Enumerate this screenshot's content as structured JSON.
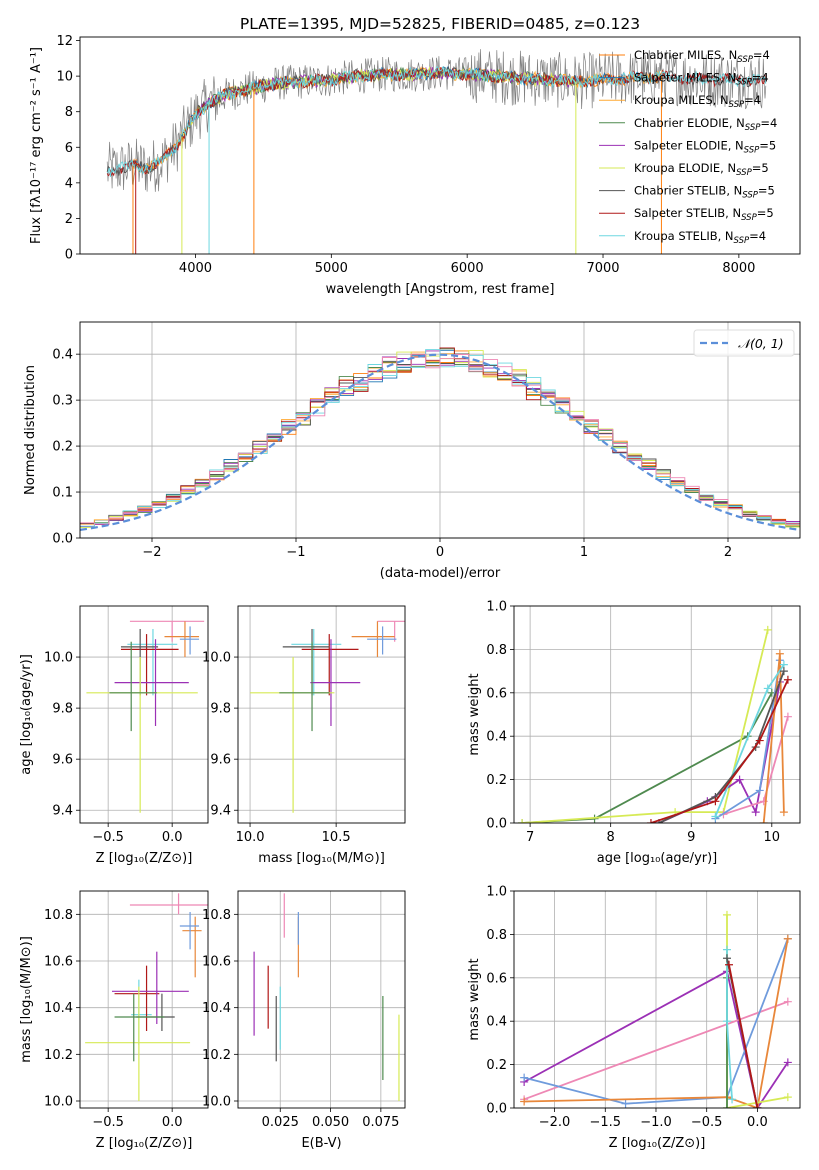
{
  "colors": {
    "chabrier_miles": "#ff7f0e",
    "salpeter_miles": "#1f77b4",
    "kroupa_miles": "#ffaa33",
    "chabrier_elodie": "#4f8a4f",
    "salpeter_elodie": "#9b30b5",
    "kroupa_elodie": "#d6ea55",
    "chabrier_stelib": "#555555",
    "salpeter_stelib": "#b01818",
    "kroupa_stelib": "#6ed7e0",
    "data": "#808080",
    "normal": "#5b8fd9",
    "pink": "#ee88b5",
    "blue": "#6f9bdc",
    "orange": "#e8873a"
  },
  "chart_data": [
    {
      "id": "spectrum",
      "type": "line",
      "title": "PLATE=1395, MJD=52825, FIBERID=0485, z=0.123",
      "xlabel": "wavelength [Angstrom, rest frame]",
      "ylabel": "Flux [fλ10⁻¹⁷ erg cm⁻² s⁻¹ A⁻¹]",
      "xlim": [
        3150,
        8450
      ],
      "ylim": [
        0,
        12.2
      ],
      "xticks": [
        4000,
        5000,
        6000,
        7000,
        8000
      ],
      "yticks": [
        0,
        2,
        4,
        6,
        8,
        10,
        12
      ],
      "legend_position": "right",
      "legend": [
        {
          "label": "Chabrier MILES, N",
          "sub": "SSP",
          "tail": "=4",
          "color_key": "chabrier_miles"
        },
        {
          "label": "Salpeter MILES, N",
          "sub": "SSP",
          "tail": "=4",
          "color_key": "salpeter_miles"
        },
        {
          "label": "Kroupa MILES, N",
          "sub": "SSP",
          "tail": "=4",
          "color_key": "kroupa_miles"
        },
        {
          "label": "Chabrier ELODIE, N",
          "sub": "SSP",
          "tail": "=4",
          "color_key": "chabrier_elodie"
        },
        {
          "label": "Salpeter ELODIE, N",
          "sub": "SSP",
          "tail": "=5",
          "color_key": "salpeter_elodie"
        },
        {
          "label": "Kroupa ELODIE, N",
          "sub": "SSP",
          "tail": "=5",
          "color_key": "kroupa_elodie"
        },
        {
          "label": "Chabrier STELIB, N",
          "sub": "SSP",
          "tail": "=5",
          "color_key": "chabrier_stelib"
        },
        {
          "label": "Salpeter STELIB, N",
          "sub": "SSP",
          "tail": "=5",
          "color_key": "salpeter_stelib"
        },
        {
          "label": "Kroupa STELIB, N",
          "sub": "SSP",
          "tail": "=4",
          "color_key": "kroupa_stelib"
        }
      ],
      "continuum": [
        [
          3350,
          4.7
        ],
        [
          3450,
          4.8
        ],
        [
          3550,
          5.0
        ],
        [
          3650,
          4.8
        ],
        [
          3750,
          5.2
        ],
        [
          3850,
          6.0
        ],
        [
          3950,
          7.2
        ],
        [
          4000,
          7.8
        ],
        [
          4100,
          8.5
        ],
        [
          4200,
          8.9
        ],
        [
          4400,
          9.3
        ],
        [
          4600,
          9.6
        ],
        [
          4800,
          9.7
        ],
        [
          5000,
          9.8
        ],
        [
          5200,
          10.0
        ],
        [
          5400,
          10.1
        ],
        [
          5600,
          10.1
        ],
        [
          5800,
          10.2
        ],
        [
          6000,
          10.1
        ],
        [
          6200,
          10.0
        ],
        [
          6400,
          9.9
        ],
        [
          6600,
          9.8
        ],
        [
          6800,
          9.7
        ],
        [
          7000,
          9.8
        ],
        [
          7200,
          9.9
        ],
        [
          7400,
          10.0
        ],
        [
          7600,
          9.9
        ],
        [
          7800,
          9.8
        ],
        [
          8000,
          9.8
        ],
        [
          8200,
          9.7
        ]
      ],
      "line_wavelengths": [
        3727,
        4340,
        4861,
        5007,
        6563,
        6717
      ]
    },
    {
      "id": "residuals",
      "type": "bar",
      "xlabel": "(data-model)/error",
      "ylabel": "Normed distribution",
      "xlim": [
        -2.5,
        2.5
      ],
      "ylim": [
        0,
        0.47
      ],
      "xticks": [
        -2,
        -1,
        0,
        1,
        2
      ],
      "yticks": [
        0.0,
        0.1,
        0.2,
        0.3,
        0.4
      ],
      "legend_position": "top-right",
      "legend": [
        {
          "label": "𝒩(0, 1)",
          "color_key": "normal"
        }
      ],
      "bin_width": 0.1,
      "grid": true
    },
    {
      "id": "age_vs_Z",
      "type": "scatter",
      "xlabel": "Z [log₁₀(Z/Z⊙)]",
      "ylabel": "age  [log₁₀(age/yr)]",
      "xlim": [
        -0.72,
        0.28
      ],
      "ylim": [
        9.35,
        10.2
      ],
      "xticks": [
        -0.5,
        0.0
      ],
      "yticks": [
        9.4,
        9.6,
        9.8,
        10.0
      ],
      "grid": true,
      "points": [
        {
          "x": 0.0,
          "xerr": [
            0.33,
            0.25
          ],
          "y": 10.14,
          "yerr": [
            0.08,
            0.0
          ],
          "color_key": "pink"
        },
        {
          "x": 0.1,
          "xerr": [
            0.16,
            0.11
          ],
          "y": 10.08,
          "yerr": [
            0.08,
            0.06
          ],
          "color_key": "orange"
        },
        {
          "x": 0.14,
          "xerr": [
            0.08,
            0.07
          ],
          "y": 10.07,
          "yerr": [
            0.06,
            0.05
          ],
          "color_key": "blue"
        },
        {
          "x": -0.15,
          "xerr": [
            0.2,
            0.19
          ],
          "y": 10.05,
          "yerr": [
            0.2,
            0.06
          ],
          "color_key": "kroupa_stelib"
        },
        {
          "x": -0.2,
          "xerr": [
            0.2,
            0.25
          ],
          "y": 10.03,
          "yerr": [
            0.18,
            0.06
          ],
          "color_key": "salpeter_stelib"
        },
        {
          "x": -0.25,
          "xerr": [
            0.15,
            0.14
          ],
          "y": 10.04,
          "yerr": [
            0.19,
            0.07
          ],
          "color_key": "chabrier_stelib"
        },
        {
          "x": -0.13,
          "xerr": [
            0.32,
            0.26
          ],
          "y": 9.9,
          "yerr": [
            0.17,
            0.17
          ],
          "color_key": "salpeter_elodie"
        },
        {
          "x": -0.25,
          "xerr": [
            0.42,
            0.45
          ],
          "y": 9.86,
          "yerr": [
            0.47,
            0.14
          ],
          "color_key": "kroupa_elodie"
        },
        {
          "x": -0.32,
          "xerr": [
            0.17,
            0.2
          ],
          "y": 9.86,
          "yerr": [
            0.15,
            0.2
          ],
          "color_key": "chabrier_elodie"
        }
      ]
    },
    {
      "id": "age_vs_mass",
      "type": "scatter",
      "xlabel": "mass [log₁₀(M/M⊙)]",
      "ylabel": "",
      "xlim": [
        9.93,
        10.9
      ],
      "ylim": [
        9.35,
        10.2
      ],
      "xticks": [
        10.0,
        10.5
      ],
      "yticks": [
        9.4,
        9.6,
        9.8,
        10.0
      ],
      "grid": true,
      "points": [
        {
          "x": 10.84,
          "xerr": [
            0.1,
            0.06
          ],
          "y": 10.14,
          "yerr": [
            0.08,
            0.0
          ],
          "color_key": "pink"
        },
        {
          "x": 10.74,
          "xerr": [
            0.15,
            0.1
          ],
          "y": 10.08,
          "yerr": [
            0.08,
            0.06
          ],
          "color_key": "orange"
        },
        {
          "x": 10.77,
          "xerr": [
            0.09,
            0.08
          ],
          "y": 10.07,
          "yerr": [
            0.06,
            0.05
          ],
          "color_key": "blue"
        },
        {
          "x": 10.37,
          "xerr": [
            0.13,
            0.16
          ],
          "y": 10.05,
          "yerr": [
            0.2,
            0.06
          ],
          "color_key": "kroupa_stelib"
        },
        {
          "x": 10.46,
          "xerr": [
            0.16,
            0.17
          ],
          "y": 10.03,
          "yerr": [
            0.18,
            0.06
          ],
          "color_key": "salpeter_stelib"
        },
        {
          "x": 10.36,
          "xerr": [
            0.17,
            0.1
          ],
          "y": 10.04,
          "yerr": [
            0.19,
            0.07
          ],
          "color_key": "chabrier_stelib"
        },
        {
          "x": 10.47,
          "xerr": [
            0.12,
            0.17
          ],
          "y": 9.9,
          "yerr": [
            0.17,
            0.17
          ],
          "color_key": "salpeter_elodie"
        },
        {
          "x": 10.25,
          "xerr": [
            0.25,
            0.24
          ],
          "y": 9.86,
          "yerr": [
            0.47,
            0.14
          ],
          "color_key": "kroupa_elodie"
        },
        {
          "x": 10.36,
          "xerr": [
            0.19,
            0.1
          ],
          "y": 9.86,
          "yerr": [
            0.15,
            0.2
          ],
          "color_key": "chabrier_elodie"
        }
      ]
    },
    {
      "id": "weight_vs_age",
      "type": "line",
      "xlabel": "age  [log₁₀(age/yr)]",
      "ylabel": "mass weight",
      "xlim": [
        6.8,
        10.35
      ],
      "ylim": [
        0,
        1.0
      ],
      "xticks": [
        7,
        8,
        9,
        10
      ],
      "yticks": [
        0.0,
        0.2,
        0.4,
        0.6,
        0.8,
        1.0
      ],
      "grid": true,
      "series": [
        {
          "color_key": "chabrier_elodie",
          "x": [
            6.9,
            7.8,
            9.7,
            10.0
          ],
          "y": [
            0.0,
            0.02,
            0.4,
            0.6
          ]
        },
        {
          "color_key": "kroupa_elodie",
          "x": [
            6.9,
            8.8,
            9.4,
            9.95
          ],
          "y": [
            0.0,
            0.05,
            0.05,
            0.89
          ]
        },
        {
          "color_key": "salpeter_elodie",
          "x": [
            8.6,
            9.2,
            9.6,
            9.8,
            10.1
          ],
          "y": [
            0.0,
            0.1,
            0.2,
            0.05,
            0.65
          ]
        },
        {
          "color_key": "pink",
          "x": [
            9.4,
            9.9,
            10.2
          ],
          "y": [
            0.04,
            0.1,
            0.49
          ]
        },
        {
          "color_key": "blue",
          "x": [
            9.3,
            9.85,
            10.1
          ],
          "y": [
            0.02,
            0.15,
            0.75
          ]
        },
        {
          "color_key": "orange",
          "x": [
            9.9,
            10.1,
            10.15
          ],
          "y": [
            0.0,
            0.78,
            0.05
          ]
        },
        {
          "color_key": "kroupa_stelib",
          "x": [
            9.3,
            9.95,
            10.15
          ],
          "y": [
            0.03,
            0.62,
            0.73
          ]
        },
        {
          "color_key": "chabrier_stelib",
          "x": [
            8.6,
            9.3,
            9.8,
            10.15
          ],
          "y": [
            0.0,
            0.12,
            0.35,
            0.7
          ]
        },
        {
          "color_key": "salpeter_stelib",
          "x": [
            8.5,
            9.3,
            9.85,
            10.2
          ],
          "y": [
            0.0,
            0.1,
            0.38,
            0.66
          ]
        }
      ]
    },
    {
      "id": "mass_vs_Z",
      "type": "scatter",
      "xlabel": "Z [log₁₀(Z/Z⊙)]",
      "ylabel": "mass [log₁₀(M/M⊙)]",
      "xlim": [
        -0.72,
        0.28
      ],
      "ylim": [
        9.97,
        10.9
      ],
      "xticks": [
        -0.5,
        0.0
      ],
      "yticks": [
        10.0,
        10.2,
        10.4,
        10.6,
        10.8
      ],
      "grid": true,
      "points": [
        {
          "x": 0.05,
          "xerr": [
            0.38,
            0.25
          ],
          "y": 10.84,
          "yerr": [
            0.04,
            0.05
          ],
          "color_key": "pink"
        },
        {
          "x": 0.18,
          "xerr": [
            0.1,
            0.05
          ],
          "y": 10.73,
          "yerr": [
            0.2,
            0.06
          ],
          "color_key": "orange"
        },
        {
          "x": 0.14,
          "xerr": [
            0.08,
            0.07
          ],
          "y": 10.75,
          "yerr": [
            0.1,
            0.06
          ],
          "color_key": "blue"
        },
        {
          "x": -0.26,
          "xerr": [
            0.06,
            0.1
          ],
          "y": 10.37,
          "yerr": [
            0.13,
            0.15
          ],
          "color_key": "kroupa_stelib"
        },
        {
          "x": -0.2,
          "xerr": [
            0.25,
            0.1
          ],
          "y": 10.46,
          "yerr": [
            0.16,
            0.12
          ],
          "color_key": "salpeter_stelib"
        },
        {
          "x": -0.08,
          "xerr": [
            0.2,
            0.1
          ],
          "y": 10.36,
          "yerr": [
            0.06,
            0.1
          ],
          "color_key": "chabrier_stelib"
        },
        {
          "x": -0.12,
          "xerr": [
            0.35,
            0.25
          ],
          "y": 10.47,
          "yerr": [
            0.14,
            0.17
          ],
          "color_key": "salpeter_elodie"
        },
        {
          "x": -0.26,
          "xerr": [
            0.42,
            0.4
          ],
          "y": 10.25,
          "yerr": [
            0.25,
            0.24
          ],
          "color_key": "kroupa_elodie"
        },
        {
          "x": -0.3,
          "xerr": [
            0.15,
            0.24
          ],
          "y": 10.36,
          "yerr": [
            0.19,
            0.1
          ],
          "color_key": "chabrier_elodie"
        }
      ]
    },
    {
      "id": "mass_vs_ebv",
      "type": "scatter",
      "xlabel": "E(B-V)",
      "ylabel": "",
      "xlim": [
        0.004,
        0.087
      ],
      "ylim": [
        9.97,
        10.9
      ],
      "xticks": [
        0.025,
        0.05,
        0.075
      ],
      "xticklabels": [
        "0.025",
        "0.050",
        "0.075"
      ],
      "yticks": [
        10.0,
        10.2,
        10.4,
        10.6,
        10.8
      ],
      "grid": true,
      "points": [
        {
          "x": 0.027,
          "y": 10.84,
          "yerr": [
            0.14,
            0.05
          ],
          "color_key": "pink"
        },
        {
          "x": 0.034,
          "y": 10.73,
          "yerr": [
            0.2,
            0.06
          ],
          "color_key": "orange"
        },
        {
          "x": 0.034,
          "y": 10.75,
          "yerr": [
            0.08,
            0.06
          ],
          "color_key": "blue"
        },
        {
          "x": 0.025,
          "y": 10.37,
          "yerr": [
            0.15,
            0.12
          ],
          "color_key": "kroupa_stelib"
        },
        {
          "x": 0.019,
          "y": 10.46,
          "yerr": [
            0.15,
            0.12
          ],
          "color_key": "salpeter_stelib"
        },
        {
          "x": 0.023,
          "y": 10.35,
          "yerr": [
            0.18,
            0.1
          ],
          "color_key": "chabrier_stelib"
        },
        {
          "x": 0.012,
          "y": 10.47,
          "yerr": [
            0.19,
            0.17
          ],
          "color_key": "salpeter_elodie"
        },
        {
          "x": 0.084,
          "y": 10.25,
          "yerr": [
            0.25,
            0.12
          ],
          "color_key": "kroupa_elodie"
        },
        {
          "x": 0.076,
          "y": 10.27,
          "yerr": [
            0.18,
            0.18
          ],
          "color_key": "chabrier_elodie"
        }
      ]
    },
    {
      "id": "weight_vs_Z",
      "type": "line",
      "xlabel": "Z [log₁₀(Z/Z⊙)]",
      "ylabel": "mass weight",
      "xlim": [
        -2.4,
        0.42
      ],
      "ylim": [
        0,
        1.0
      ],
      "xticks": [
        -2.0,
        -1.5,
        -1.0,
        -0.5,
        0.0
      ],
      "yticks": [
        0.0,
        0.2,
        0.4,
        0.6,
        0.8,
        1.0
      ],
      "grid": true,
      "series": [
        {
          "color_key": "salpeter_elodie",
          "x": [
            -2.3,
            -0.3,
            0.0,
            0.3
          ],
          "y": [
            0.12,
            0.63,
            0.0,
            0.21
          ]
        },
        {
          "color_key": "pink",
          "x": [
            -2.3,
            0.3
          ],
          "y": [
            0.04,
            0.49
          ]
        },
        {
          "color_key": "blue",
          "x": [
            -2.3,
            -1.3,
            -0.3,
            0.3
          ],
          "y": [
            0.14,
            0.02,
            0.05,
            0.78
          ]
        },
        {
          "color_key": "orange",
          "x": [
            -2.3,
            -0.3,
            0.0,
            0.3
          ],
          "y": [
            0.03,
            0.05,
            0.0,
            0.78
          ]
        },
        {
          "color_key": "kroupa_elodie",
          "x": [
            -0.3,
            -0.3,
            0.3
          ],
          "y": [
            0.89,
            0.0,
            0.05
          ]
        },
        {
          "color_key": "chabrier_elodie",
          "x": [
            -0.3,
            -0.3
          ],
          "y": [
            0.6,
            0.0
          ]
        },
        {
          "color_key": "kroupa_stelib",
          "x": [
            -0.3,
            -0.3,
            -0.25
          ],
          "y": [
            0.73,
            0.4,
            0.04
          ]
        },
        {
          "color_key": "chabrier_stelib",
          "x": [
            -0.3,
            0.0
          ],
          "y": [
            0.69,
            0.0
          ]
        },
        {
          "color_key": "salpeter_stelib",
          "x": [
            -0.28,
            0.0
          ],
          "y": [
            0.66,
            0.0
          ]
        }
      ]
    }
  ]
}
